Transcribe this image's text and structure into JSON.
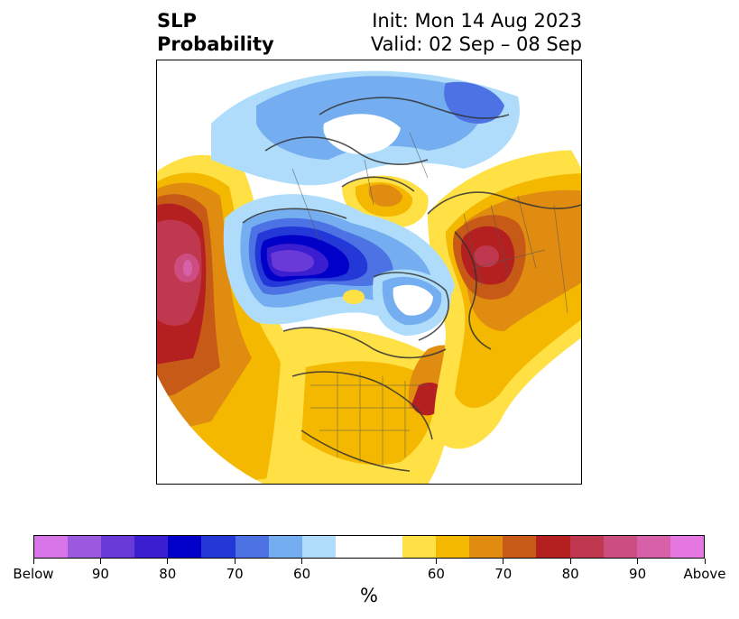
{
  "header": {
    "title_line1": "SLP",
    "title_line2": "Probability",
    "init_text": "Init: Mon 14 Aug 2023",
    "valid_text": "Valid: 02 Sep – 08 Sep"
  },
  "colorbar": {
    "colors": [
      "#d674e8",
      "#9b59e0",
      "#6a3ad8",
      "#3a1ed0",
      "#0000c8",
      "#2438d8",
      "#4c72e4",
      "#74aef0",
      "#aedcfa",
      "#ffffff",
      "#ffffff",
      "#ffe146",
      "#f5b800",
      "#e08c10",
      "#c85a18",
      "#b42020",
      "#c03850",
      "#cc4e80",
      "#d860a8",
      "#e478e0"
    ],
    "ticks": [
      "Below",
      "90",
      "80",
      "70",
      "60",
      "60",
      "70",
      "80",
      "90",
      "Above"
    ],
    "unit": "%"
  },
  "map": {
    "projection": "north-polar-stereographic",
    "palette": {
      "below_pink": "#d674e8",
      "below_purple": "#6a3ad8",
      "below_blue": "#0000c8",
      "blue": "#4c72e4",
      "light_blue": "#74aef0",
      "pale_blue": "#aedcfa",
      "yellow": "#ffe146",
      "gold": "#f5b800",
      "orange": "#e08c10",
      "dark_orange": "#c85a18",
      "red": "#b42020",
      "crimson": "#c03850",
      "rose": "#cc4e80",
      "magenta": "#d860a8"
    }
  }
}
